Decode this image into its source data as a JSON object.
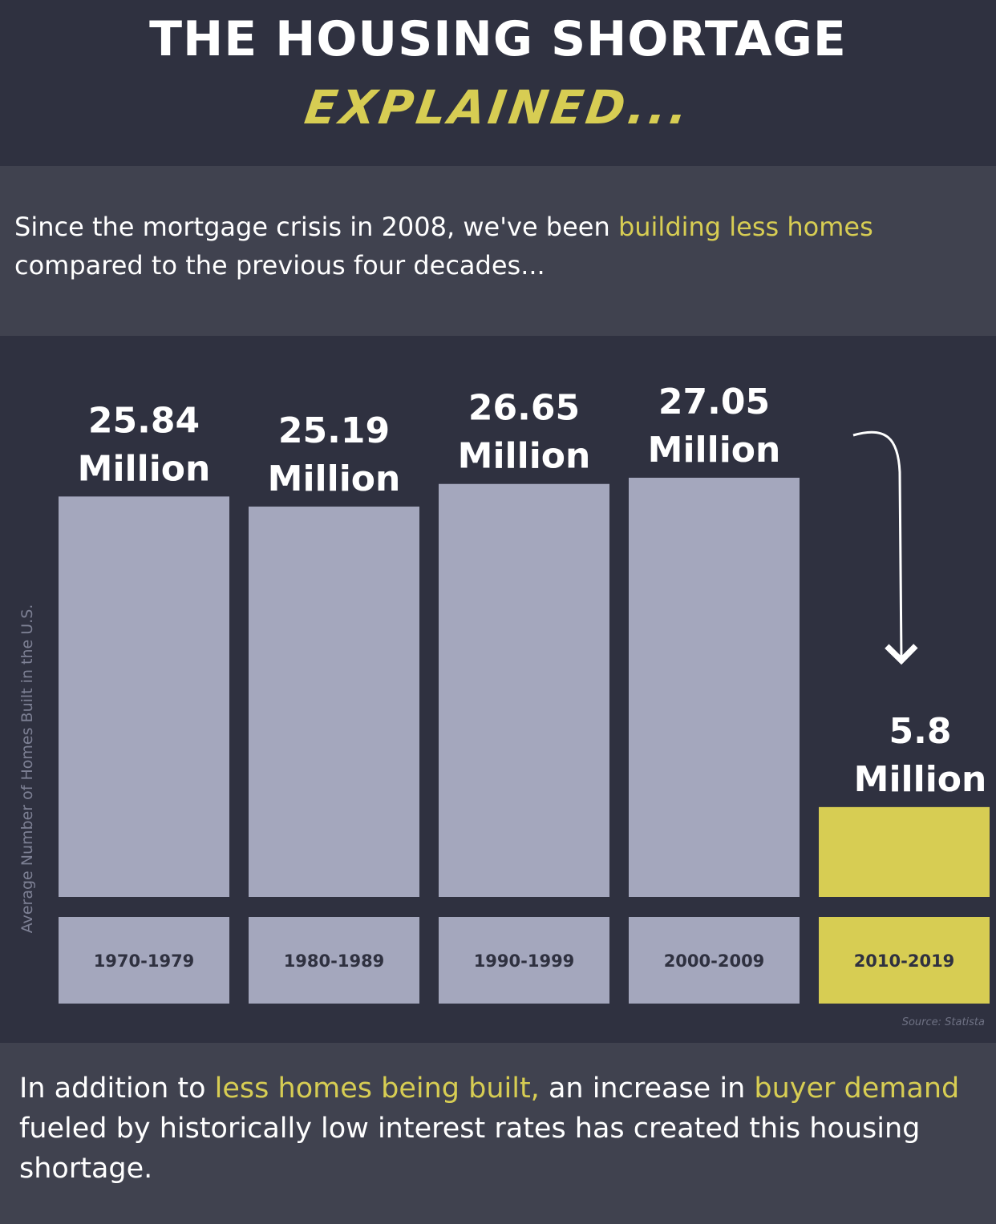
{
  "header": {
    "title": "THE HOUSING SHORTAGE",
    "subtitle": "EXPLAINED..."
  },
  "intro": {
    "part1": "Since the mortgage crisis in 2008, we've been ",
    "highlight": "building less homes",
    "part2": " compared to the previous four decades..."
  },
  "outro": {
    "part1": "In addition to ",
    "highlight1": "less homes being built,",
    "part2": " an increase in ",
    "highlight2": "buyer demand",
    "part3": " fueled by historically low interest rates has created this housing shortage."
  },
  "colors": {
    "background": "#2f3140",
    "panel": "#40424f",
    "bar": "#a4a7bd",
    "highlight": "#d7cd53",
    "text": "#ffffff",
    "tick_text": "#2f3140"
  },
  "chart_data": {
    "type": "bar",
    "categories": [
      "1970-1979",
      "1980-1989",
      "1990-1999",
      "2000-2009",
      "2010-2019"
    ],
    "values": [
      25.84,
      25.19,
      26.65,
      27.05,
      5.8
    ],
    "value_labels": [
      [
        "25.84",
        "Million"
      ],
      [
        "25.19",
        "Million"
      ],
      [
        "26.65",
        "Million"
      ],
      [
        "27.05",
        "Million"
      ],
      [
        "5.8",
        "Million"
      ]
    ],
    "highlighted_index": 4,
    "ylabel": "Average Number of Homes Built in the U.S.",
    "ylim": [
      0,
      27.05
    ],
    "grid": false,
    "annotation": "downward arrow pointing to 2010-2019",
    "source": "Source: Statista"
  }
}
